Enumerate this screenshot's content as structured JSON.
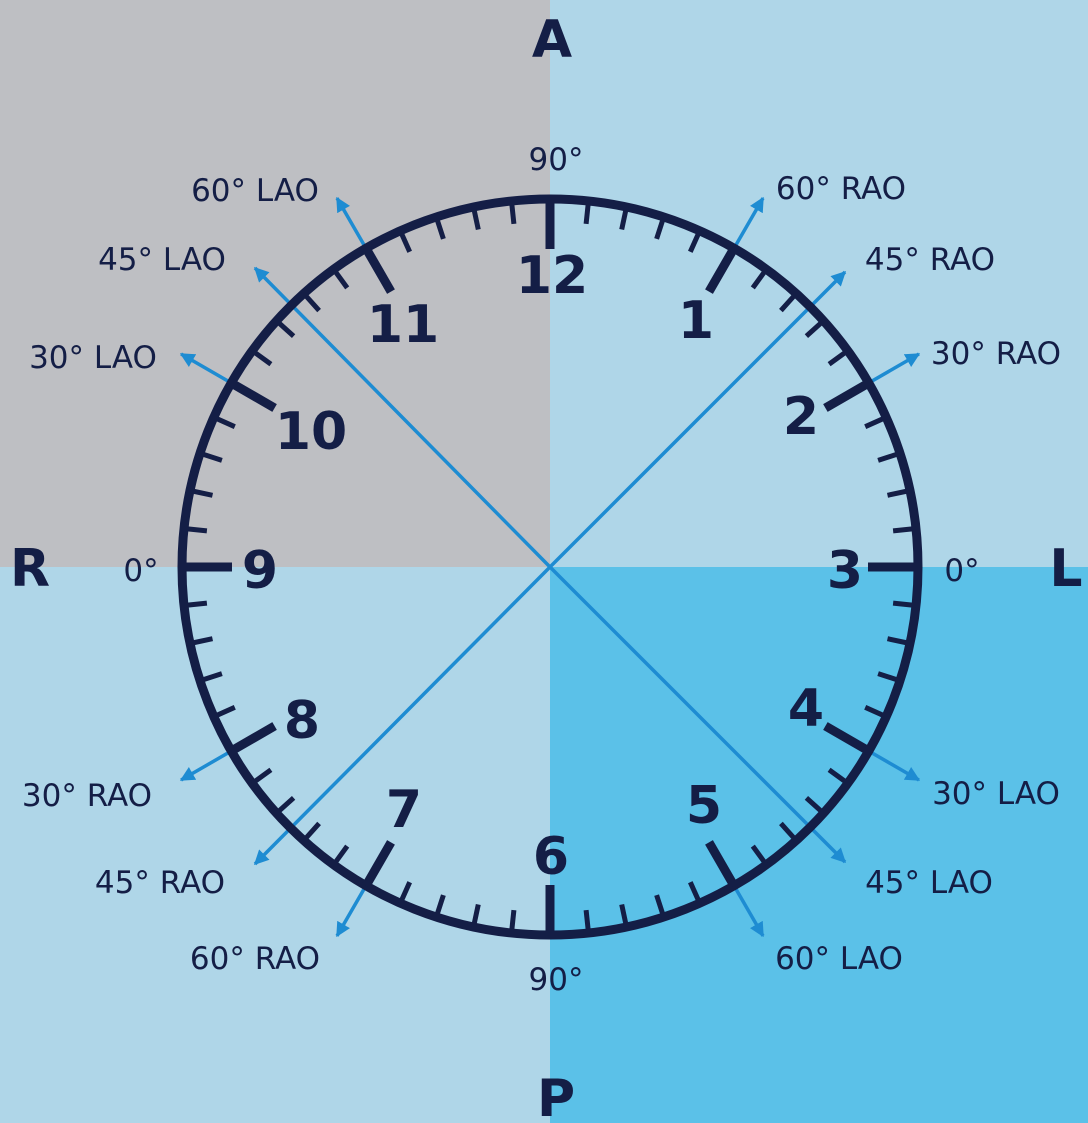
{
  "colors": {
    "background": "#AFD6E8",
    "quadrant_top_left": "#BEBFC3",
    "quadrant_bottom_right": "#5BC1E8",
    "clock_navy": "#141E46",
    "projection_blue": "#1E8CD2"
  },
  "directions": {
    "anterior": "A",
    "posterior": "P",
    "right": "R",
    "left": "L"
  },
  "clock_hours": [
    "12",
    "1",
    "2",
    "3",
    "4",
    "5",
    "6",
    "7",
    "8",
    "9",
    "10",
    "11"
  ],
  "degree_labels": {
    "top": "90°",
    "bottom": "90°",
    "left": "0°",
    "right": "0°"
  },
  "projections": [
    {
      "label": "60° RAO"
    },
    {
      "label": "45° RAO"
    },
    {
      "label": "30° RAO"
    },
    {
      "label": "30° LAO"
    },
    {
      "label": "45° LAO"
    },
    {
      "label": "60° LAO"
    },
    {
      "label": "60° RAO"
    },
    {
      "label": "45° RAO"
    },
    {
      "label": "30° RAO"
    },
    {
      "label": "30° LAO"
    },
    {
      "label": "45° LAO"
    },
    {
      "label": "60° LAO"
    }
  ]
}
